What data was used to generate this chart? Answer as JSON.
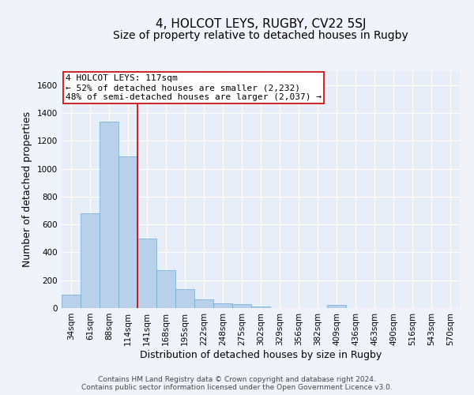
{
  "title": "4, HOLCOT LEYS, RUGBY, CV22 5SJ",
  "subtitle": "Size of property relative to detached houses in Rugby",
  "xlabel": "Distribution of detached houses by size in Rugby",
  "ylabel": "Number of detached properties",
  "footer_line1": "Contains HM Land Registry data © Crown copyright and database right 2024.",
  "footer_line2": "Contains public sector information licensed under the Open Government Licence v3.0.",
  "bar_labels": [
    "34sqm",
    "61sqm",
    "88sqm",
    "114sqm",
    "141sqm",
    "168sqm",
    "195sqm",
    "222sqm",
    "248sqm",
    "275sqm",
    "302sqm",
    "329sqm",
    "356sqm",
    "382sqm",
    "409sqm",
    "436sqm",
    "463sqm",
    "490sqm",
    "516sqm",
    "543sqm",
    "570sqm"
  ],
  "bar_values": [
    95,
    680,
    1340,
    1090,
    500,
    270,
    135,
    65,
    35,
    30,
    10,
    0,
    0,
    0,
    20,
    0,
    0,
    0,
    0,
    0,
    0
  ],
  "bar_color": "#b8d0ea",
  "bar_edgecolor": "#6aaad4",
  "red_line_color": "#cc0000",
  "red_line_index": 3.5,
  "annotation_line1": "4 HOLCOT LEYS: 117sqm",
  "annotation_line2": "← 52% of detached houses are smaller (2,232)",
  "annotation_line3": "48% of semi-detached houses are larger (2,037) →",
  "annotation_box_color": "#ffffff",
  "annotation_box_edgecolor": "#cc0000",
  "ylim": [
    0,
    1700
  ],
  "yticks": [
    0,
    200,
    400,
    600,
    800,
    1000,
    1200,
    1400,
    1600
  ],
  "background_color": "#f0f4fa",
  "plot_bg_color": "#e8eef8",
  "grid_color": "#ffffff",
  "title_fontsize": 11,
  "subtitle_fontsize": 10,
  "axis_label_fontsize": 9,
  "tick_fontsize": 7.5,
  "footer_fontsize": 6.5,
  "annotation_fontsize": 8
}
